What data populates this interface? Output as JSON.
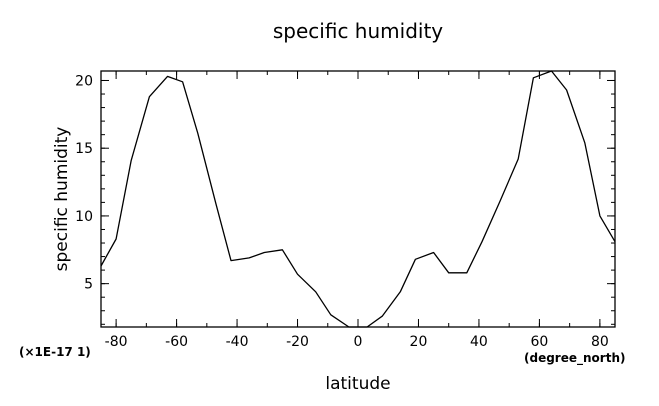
{
  "chart_data": {
    "type": "line",
    "title": "specific humidity",
    "xlabel": "latitude",
    "ylabel": "specific humidity",
    "x_unit": "(degree_north)",
    "y_unit": "(×1E-17 1)",
    "xlim": [
      -85,
      85
    ],
    "ylim": [
      1.8,
      20.7
    ],
    "x_ticks": [
      -80,
      -60,
      -40,
      -20,
      0,
      20,
      40,
      60,
      80
    ],
    "y_ticks": [
      5,
      10,
      15,
      20
    ],
    "grid": false,
    "x": [
      -85,
      -80,
      -75,
      -69,
      -63,
      -58,
      -53,
      -47,
      -42,
      -36,
      -31,
      -25,
      -20,
      -14,
      -9,
      -3,
      3,
      8,
      14,
      19,
      25,
      30,
      36,
      41,
      47,
      53,
      58,
      64,
      69,
      75,
      80,
      85
    ],
    "values": [
      6.3,
      8.3,
      14.1,
      18.8,
      20.3,
      19.9,
      16.1,
      10.9,
      6.7,
      6.9,
      7.3,
      7.5,
      5.7,
      4.4,
      2.7,
      1.8,
      1.8,
      2.6,
      4.4,
      6.8,
      7.3,
      5.8,
      5.8,
      8.1,
      11.1,
      14.2,
      20.2,
      20.7,
      19.3,
      15.4,
      10.0,
      8.1
    ]
  }
}
